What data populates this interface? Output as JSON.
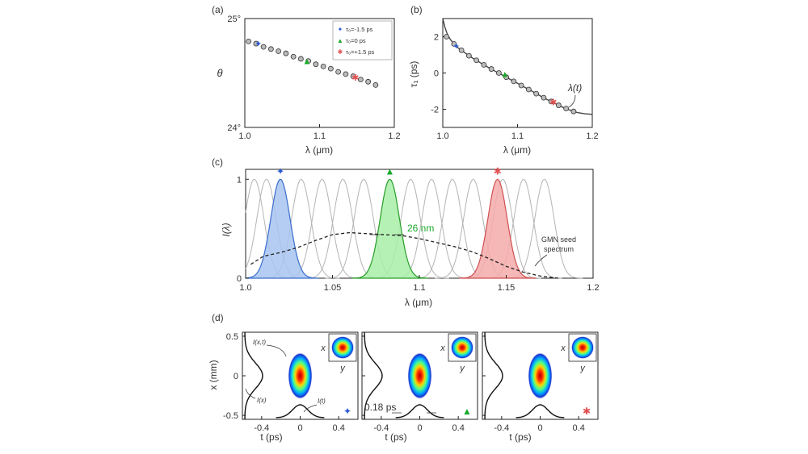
{
  "panels": {
    "a": {
      "label": "(a)",
      "type": "scatter",
      "xlabel": "λ (μm)",
      "ylabel": "θ",
      "xlim": [
        1.0,
        1.2
      ],
      "ylim": [
        24.0,
        25.0
      ],
      "xticks": [
        "1.0",
        "1.1",
        "1.2"
      ],
      "xtick_values": [
        1.0,
        1.1,
        1.2
      ],
      "yticks": [
        "24°",
        "25°"
      ],
      "ytick_values": [
        24.0,
        25.0
      ],
      "points_x": [
        1.005,
        1.015,
        1.025,
        1.035,
        1.045,
        1.055,
        1.065,
        1.075,
        1.085,
        1.095,
        1.105,
        1.115,
        1.125,
        1.135,
        1.145,
        1.155,
        1.165,
        1.175
      ],
      "points_y": [
        24.79,
        24.77,
        24.74,
        24.72,
        24.7,
        24.68,
        24.65,
        24.63,
        24.61,
        24.58,
        24.56,
        24.54,
        24.51,
        24.49,
        24.47,
        24.44,
        24.42,
        24.39
      ],
      "legend": [
        {
          "symbol": "✦",
          "color": "#2a57d6",
          "text": "τ₀=-1.5 ps"
        },
        {
          "symbol": "▲",
          "color": "#1aa82a",
          "text": "τ₀=0 ps"
        },
        {
          "symbol": "✱",
          "color": "#e05050",
          "text": "τ₀=+1.5 ps"
        }
      ],
      "markers": [
        {
          "x": 1.018,
          "y": 24.77,
          "symbol": "✦",
          "color": "#2a57d6"
        },
        {
          "x": 1.083,
          "y": 24.61,
          "symbol": "▲",
          "color": "#1aa82a"
        },
        {
          "x": 1.148,
          "y": 24.46,
          "symbol": "✱",
          "color": "#e05050"
        }
      ]
    },
    "b": {
      "label": "(b)",
      "type": "line",
      "xlabel": "λ (μm)",
      "ylabel": "τ₁ (ps)",
      "xlim": [
        1.0,
        1.2
      ],
      "ylim": [
        -3.0,
        3.0
      ],
      "xticks": [
        "1.0",
        "1.1",
        "1.2"
      ],
      "xtick_values": [
        1.0,
        1.1,
        1.2
      ],
      "yticks": [
        "2",
        "0",
        "-2"
      ],
      "ytick_values": [
        2,
        0,
        -2
      ],
      "curve_x": [
        1.0,
        1.003,
        1.006,
        1.01,
        1.015,
        1.02,
        1.03,
        1.04,
        1.05,
        1.06,
        1.07,
        1.08,
        1.09,
        1.1,
        1.11,
        1.12,
        1.13,
        1.14,
        1.15,
        1.16,
        1.17,
        1.18,
        1.19,
        1.2
      ],
      "curve_y": [
        3.0,
        2.5,
        2.15,
        1.85,
        1.6,
        1.4,
        1.1,
        0.82,
        0.57,
        0.33,
        0.1,
        -0.12,
        -0.35,
        -0.57,
        -0.8,
        -1.02,
        -1.25,
        -1.47,
        -1.68,
        -1.88,
        -2.05,
        -2.18,
        -2.25,
        -2.28
      ],
      "points_x": [
        1.005,
        1.015,
        1.025,
        1.035,
        1.045,
        1.055,
        1.065,
        1.075,
        1.085,
        1.095,
        1.105,
        1.115,
        1.125,
        1.135,
        1.145,
        1.155,
        1.165,
        1.175
      ],
      "points_y": [
        2.0,
        1.6,
        1.25,
        0.95,
        0.7,
        0.45,
        0.22,
        0.0,
        -0.23,
        -0.46,
        -0.69,
        -0.91,
        -1.14,
        -1.36,
        -1.57,
        -1.78,
        -1.96,
        -2.12
      ],
      "markers": [
        {
          "x": 1.018,
          "y": 1.5,
          "symbol": "✦",
          "color": "#2a57d6"
        },
        {
          "x": 1.083,
          "y": -0.05,
          "symbol": "▲",
          "color": "#1aa82a"
        },
        {
          "x": 1.148,
          "y": -1.6,
          "symbol": "✱",
          "color": "#e05050"
        }
      ],
      "annotation": "λ(t)"
    },
    "c": {
      "label": "(c)",
      "type": "line",
      "xlabel": "λ (μm)",
      "ylabel": "I(λ)",
      "xlim": [
        1.0,
        1.2
      ],
      "ylim": [
        0,
        1.1
      ],
      "xticks": [
        "1.0",
        "1.05",
        "1.1",
        "1.15",
        "1.2"
      ],
      "xtick_values": [
        1.0,
        1.05,
        1.1,
        1.15,
        1.2
      ],
      "yticks": [
        "0",
        "1"
      ],
      "ytick_values": [
        0,
        1
      ],
      "gaussian_centers": [
        1.005,
        1.012,
        1.02,
        1.032,
        1.044,
        1.056,
        1.068,
        1.083,
        1.095,
        1.107,
        1.119,
        1.131,
        1.148,
        1.16,
        1.172
      ],
      "gaussian_fwhm": 0.013,
      "highlighted": [
        {
          "center": 1.02,
          "fill": "#a8c4f0",
          "stroke": "#3b6fd0",
          "symbol": "✦",
          "color": "#2a57d6"
        },
        {
          "center": 1.083,
          "fill": "#a8eea8",
          "stroke": "#2aa02a",
          "symbol": "▲",
          "color": "#1aa82a"
        },
        {
          "center": 1.145,
          "fill": "#f4aaaa",
          "stroke": "#d05050",
          "symbol": "✱",
          "color": "#e05050"
        }
      ],
      "seed_x": [
        1.003,
        1.01,
        1.02,
        1.03,
        1.04,
        1.05,
        1.06,
        1.07,
        1.08,
        1.09,
        1.1,
        1.11,
        1.12,
        1.13,
        1.14,
        1.15,
        1.16,
        1.17,
        1.18
      ],
      "seed_y": [
        0.14,
        0.22,
        0.26,
        0.31,
        0.38,
        0.44,
        0.46,
        0.45,
        0.44,
        0.43,
        0.4,
        0.36,
        0.32,
        0.27,
        0.2,
        0.12,
        0.06,
        0.02,
        0.0
      ],
      "annotation_width": "26 nm",
      "annotation_seed_1": "GMN seed",
      "annotation_seed_2": "spectrum"
    },
    "d": {
      "label": "(d)",
      "xlabel": "t (ps)",
      "ylabel": "x (mm)",
      "xlim": [
        -0.6,
        0.6
      ],
      "ylim": [
        -0.55,
        0.55
      ],
      "xticks": [
        "-0.4",
        "0",
        "0.4"
      ],
      "xtick_values": [
        -0.4,
        0.0,
        0.4
      ],
      "yticks": [
        "0.5",
        "0",
        "-0.5"
      ],
      "ytick_values": [
        0.5,
        0.0,
        -0.5
      ],
      "inset_xlabel": "y",
      "inset_ylabel": "x",
      "ann_ixt": "I(x,t)",
      "ann_ix": "I(x)",
      "ann_it": "I(t)",
      "ann_width": "0.18 ps",
      "subpanel_markers": [
        {
          "symbol": "✦",
          "color": "#2a57d6"
        },
        {
          "symbol": "▲",
          "color": "#1aa82a"
        },
        {
          "symbol": "✱",
          "color": "#e05050"
        }
      ]
    }
  },
  "colors": {
    "point_stroke": "#333333",
    "gaussian_gray": "#b4b4b4",
    "axis": "#222222"
  }
}
